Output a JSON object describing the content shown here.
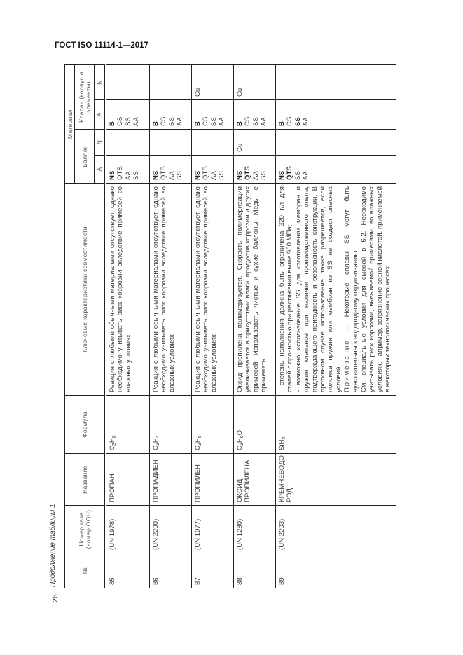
{
  "doc_title": "ГОСТ ISO 11114-1—2017",
  "continuation": "Продолжение таблицы 1",
  "page_number": "26",
  "headers": {
    "no": "№",
    "un": "Номер газа (номер ООН)",
    "name": "Название",
    "formula": "Формула",
    "desc": "Ключевые характеристики совместимости",
    "material": "Материал",
    "cylinder": "Баллон",
    "valve": "Клапан (корпус и элементы)",
    "a": "A",
    "n": "N"
  },
  "rows": [
    {
      "no": "85",
      "un": "(UN 1978)",
      "name": "ПРОПАН",
      "formula": [
        {
          "t": "C"
        },
        {
          "t": "3",
          "sub": true
        },
        {
          "t": "H"
        },
        {
          "t": "8",
          "sub": true
        }
      ],
      "desc": [
        {
          "t": "Реакция с любыми обычными материалами отсутствует, однако необходимо учитывать риск коррозии вследствие примесей во влажных условиях"
        }
      ],
      "cylA": [
        {
          "t": "NS",
          "b": true
        },
        {
          "t": "QTS"
        },
        {
          "t": "AA"
        },
        {
          "t": "SS"
        }
      ],
      "cylN": [],
      "valA": [
        {
          "t": "B",
          "b": true
        },
        {
          "t": "CS"
        },
        {
          "t": "SS"
        },
        {
          "t": "AA"
        }
      ],
      "valN": []
    },
    {
      "no": "86",
      "un": "(UN 2200)",
      "name": "ПРОПАДИЕН",
      "formula": [
        {
          "t": "C"
        },
        {
          "t": "3",
          "sub": true
        },
        {
          "t": "H"
        },
        {
          "t": "4",
          "sub": true
        }
      ],
      "desc": [
        {
          "t": "Реакция с любыми обычными материалами отсутствует, однако необходимо учитывать риск коррозии вследствие примесей во влажных условиях"
        }
      ],
      "cylA": [
        {
          "t": "NS",
          "b": true
        },
        {
          "t": "QTS"
        },
        {
          "t": "AA"
        },
        {
          "t": "SS"
        }
      ],
      "cylN": [],
      "valA": [
        {
          "t": "B",
          "b": true
        },
        {
          "t": "CS"
        },
        {
          "t": "SS"
        },
        {
          "t": "AA"
        }
      ],
      "valN": []
    },
    {
      "no": "87",
      "un": "(UN 1077)",
      "name": "ПРОПИЛЕН",
      "formula": [
        {
          "t": "C"
        },
        {
          "t": "3",
          "sub": true
        },
        {
          "t": "H"
        },
        {
          "t": "6",
          "sub": true
        }
      ],
      "desc": [
        {
          "t": "Реакция с любыми обычными материалами отсутствует, однако необходимо учитывать риск коррозии вследствие примесей во влажных условиях"
        }
      ],
      "cylA": [
        {
          "t": "NS",
          "b": true
        },
        {
          "t": "QTS"
        },
        {
          "t": "AA"
        },
        {
          "t": "SS"
        }
      ],
      "cylN": [],
      "valA": [
        {
          "t": "B",
          "b": true
        },
        {
          "t": "CS"
        },
        {
          "t": "SS"
        },
        {
          "t": "AA"
        }
      ],
      "valN": [
        {
          "t": "Cu"
        }
      ]
    },
    {
      "no": "88",
      "un": "(UN 1280)",
      "name": "ОКСИД ПРОПИЛЕНА",
      "formula": [
        {
          "t": "C"
        },
        {
          "t": "3",
          "sub": true
        },
        {
          "t": "H"
        },
        {
          "t": "6",
          "sub": true
        },
        {
          "t": "O"
        }
      ],
      "desc": [
        {
          "t": "Оксид пропилена полимеризуется. Скорость полимеризации увеличивается в присутствии влаги, продуктов коррозии и других примесей. Использовать чистые и сухие баллоны. Медь не применять"
        }
      ],
      "cylA": [
        {
          "t": "NS",
          "b": true
        },
        {
          "t": "QTS",
          "b": true
        },
        {
          "t": "AA"
        },
        {
          "t": "SS"
        }
      ],
      "cylN": [
        {
          "t": "Cu"
        }
      ],
      "valA": [
        {
          "t": "B",
          "b": true
        },
        {
          "t": "CS"
        },
        {
          "t": "SS"
        },
        {
          "t": "AA"
        }
      ],
      "valN": [
        {
          "t": "Cu"
        }
      ]
    },
    {
      "no": "89",
      "un": "(UN 2203)",
      "name": "КРЕМНЕВОДО-РОД",
      "formula": [
        {
          "t": "SiH"
        },
        {
          "t": "4",
          "sub": true
        }
      ],
      "desc": [
        {
          "t": "- степень наполнения должна быть ограничена 320 г/л для сталей с прочностью при растяжении выше 950 МПа;"
        },
        {
          "t": "- возможно использование SS для изготовления мембран и пружин клапанов при наличии производственного опыта, подтверждающего пригодность и безопасность конструкции. В противном случае использование также разрешается, если поломка пружин или мембран из SS не создаст опасных условий."
        },
        {
          "label": "Примечание",
          "t": " — Некоторые сплавы SS могут быть чувствительны к водородному охрупчиванию."
        },
        {
          "t": "См. специальные условия для смесей в 6.2. Необходимо учитывать риск коррозии, вызываемой примесями, во влажных условиях, например, загрязнение серной кислотой, применяемой в некоторых технологических процессах"
        }
      ],
      "cylA": [
        {
          "t": "NS",
          "b": true
        },
        {
          "t": "QTS",
          "b": true
        },
        {
          "t": "SS"
        },
        {
          "t": "AA"
        }
      ],
      "cylN": [],
      "valA": [
        {
          "t": "B",
          "b": true
        },
        {
          "t": "CS"
        },
        {
          "t": "SS",
          "b": true
        },
        {
          "t": "AA"
        }
      ],
      "valN": []
    }
  ]
}
